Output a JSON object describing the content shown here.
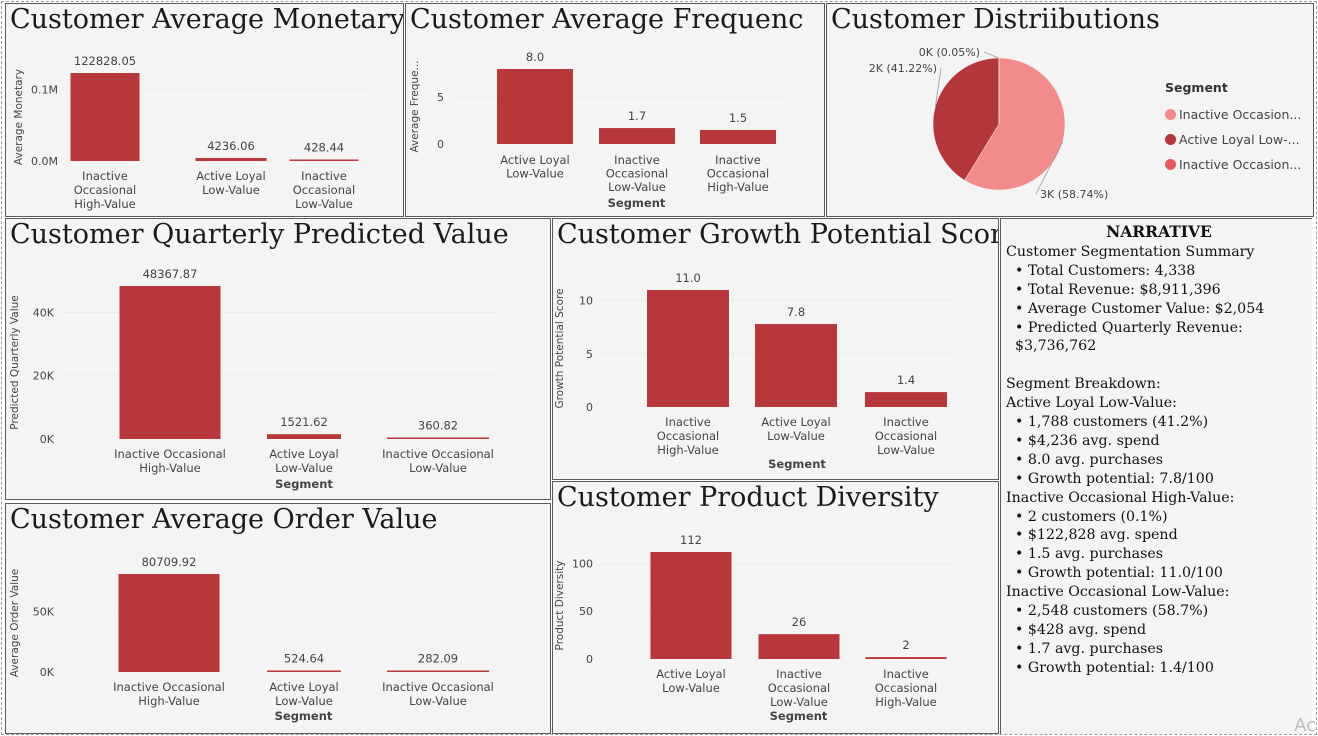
{
  "colors": {
    "bar": "#b7373b",
    "pie_light": "#f28b8b",
    "pie_dark": "#b3363a",
    "pie_mid": "#e85a5f"
  },
  "charts": [
    {
      "id": "monetary",
      "title": "Customer Average Monetary",
      "ylabel": "Average Monetary",
      "xlabel": "",
      "type": "bar",
      "categories": [
        [
          "Inactive",
          "Occasional",
          "High-Value"
        ],
        [
          "Active Loyal",
          "Low-Value"
        ],
        [
          "Inactive",
          "Occasional",
          "Low-Value"
        ]
      ],
      "values": [
        122828.05,
        4236.06,
        428.44
      ],
      "value_labels": [
        "122828.05",
        "4236.06",
        "428.44"
      ],
      "ymax": 122828.05,
      "ticks": [
        {
          "v": 0,
          "l": "0.0M"
        },
        {
          "v": 100000,
          "l": "0.1M"
        }
      ]
    },
    {
      "id": "frequency",
      "title": "Customer Average Frequenc",
      "ylabel": "Average Freque...",
      "xlabel": "Segment",
      "type": "bar",
      "categories": [
        [
          "Active Loyal",
          "Low-Value"
        ],
        [
          "Inactive",
          "Occasional",
          "Low-Value"
        ],
        [
          "Inactive",
          "Occasional",
          "High-Value"
        ]
      ],
      "values": [
        8.0,
        1.7,
        1.5
      ],
      "value_labels": [
        "8.0",
        "1.7",
        "1.5"
      ],
      "ymax": 8.0,
      "ticks": [
        {
          "v": 0,
          "l": "0"
        },
        {
          "v": 5,
          "l": "5"
        }
      ]
    },
    {
      "id": "quarterly",
      "title": "Customer Quarterly Predicted Value",
      "ylabel": "Predicted Quarterly Value",
      "xlabel": "Segment",
      "type": "bar",
      "categories": [
        [
          "Inactive Occasional",
          "High-Value"
        ],
        [
          "Active Loyal",
          "Low-Value"
        ],
        [
          "Inactive Occasional",
          "Low-Value"
        ]
      ],
      "values": [
        48367.87,
        1521.62,
        360.82
      ],
      "value_labels": [
        "48367.87",
        "1521.62",
        "360.82"
      ],
      "ymax": 48367.87,
      "ticks": [
        {
          "v": 0,
          "l": "0K"
        },
        {
          "v": 20000,
          "l": "20K"
        },
        {
          "v": 40000,
          "l": "40K"
        }
      ]
    },
    {
      "id": "growth",
      "title": "Customer Growth Potential Score",
      "ylabel": "Growth Potential Score",
      "xlabel": "Segment",
      "type": "bar",
      "categories": [
        [
          "Inactive",
          "Occasional",
          "High-Value"
        ],
        [
          "Active Loyal",
          "Low-Value"
        ],
        [
          "Inactive",
          "Occasional",
          "Low-Value"
        ]
      ],
      "values": [
        11.0,
        7.8,
        1.4
      ],
      "value_labels": [
        "11.0",
        "7.8",
        "1.4"
      ],
      "ymax": 11.0,
      "ticks": [
        {
          "v": 0,
          "l": "0"
        },
        {
          "v": 5,
          "l": "5"
        },
        {
          "v": 10,
          "l": "10"
        }
      ]
    },
    {
      "id": "aov",
      "title": "Customer Average Order Value",
      "ylabel": "Average Order Value",
      "xlabel": "Segment",
      "type": "bar",
      "categories": [
        [
          "Inactive Occasional",
          "High-Value"
        ],
        [
          "Active Loyal",
          "Low-Value"
        ],
        [
          "Inactive Occasional",
          "Low-Value"
        ]
      ],
      "values": [
        80709.92,
        524.64,
        282.09
      ],
      "value_labels": [
        "80709.92",
        "524.64",
        "282.09"
      ],
      "ymax": 80709.92,
      "ticks": [
        {
          "v": 0,
          "l": "0K"
        },
        {
          "v": 50000,
          "l": "50K"
        }
      ]
    },
    {
      "id": "diversity",
      "title": "Customer Product Diversity",
      "ylabel": "Product Diversity",
      "xlabel": "Segment",
      "type": "bar",
      "categories": [
        [
          "Active Loyal",
          "Low-Value"
        ],
        [
          "Inactive",
          "Occasional",
          "Low-Value"
        ],
        [
          "Inactive",
          "Occasional",
          "High-Value"
        ]
      ],
      "values": [
        112,
        26,
        2
      ],
      "value_labels": [
        "112",
        "26",
        "2"
      ],
      "ymax": 112,
      "ticks": [
        {
          "v": 0,
          "l": "0"
        },
        {
          "v": 50,
          "l": "50"
        },
        {
          "v": 100,
          "l": "100"
        }
      ]
    }
  ],
  "chart_data": {
    "type": "pie",
    "title": "Customer Distriibutions",
    "legend_title": "Segment",
    "slices": [
      {
        "name": "Inactive Occasion...",
        "value": 58.74,
        "label": "3K (58.74%)"
      },
      {
        "name": "Active Loyal Low-...",
        "value": 41.22,
        "label": "2K (41.22%)"
      },
      {
        "name": "Inactive Occasion...",
        "value": 0.05,
        "label": "0K (0.05%)"
      }
    ],
    "legend_placement": "right"
  },
  "narrative": {
    "title": "NARRATIVE",
    "heading": "Customer Segmentation Summary",
    "summary": [
      "Total Customers: 4,338",
      "Total Revenue: $8,911,396",
      "Average Customer Value: $2,054",
      "Predicted Quarterly Revenue: $3,736,762"
    ],
    "breakdown_heading": "Segment Breakdown:",
    "segments": [
      {
        "name": "Active Loyal Low-Value:",
        "items": [
          "1,788 customers (41.2%)",
          "$4,236 avg. spend",
          "8.0 avg. purchases",
          "Growth potential: 7.8/100"
        ]
      },
      {
        "name": "Inactive Occasional High-Value:",
        "items": [
          "2 customers (0.1%)",
          "$122,828 avg. spend",
          "1.5 avg. purchases",
          "Growth potential: 11.0/100"
        ]
      },
      {
        "name": "Inactive Occasional Low-Value:",
        "items": [
          "2,548 customers (58.7%)",
          "$428 avg. spend",
          "1.7 avg. purchases",
          "Growth potential: 1.4/100"
        ]
      }
    ]
  },
  "watermark": "Ac"
}
